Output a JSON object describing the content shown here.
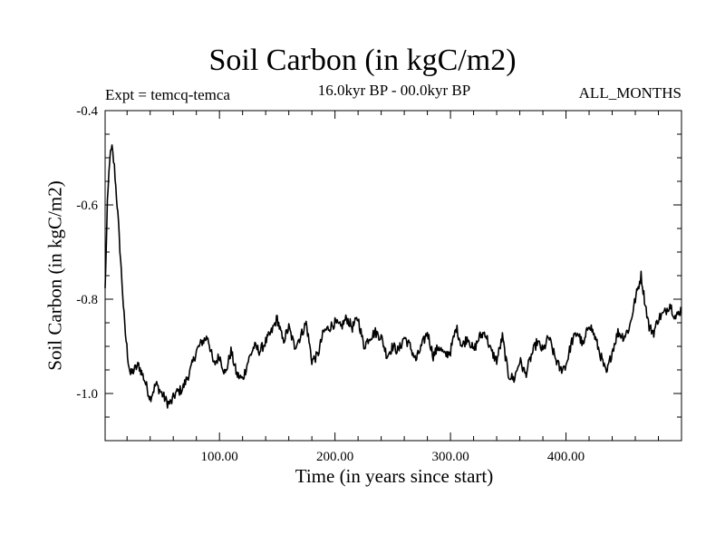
{
  "chart_data": {
    "type": "line",
    "title": "Soil Carbon (in kgC/m2)",
    "subtitle": "16.0kyr BP - 00.0kyr BP",
    "experiment": "Expt = temcq-temca",
    "period": "ALL_MONTHS",
    "xlabel": "Time (in years since start)",
    "ylabel": "Soil Carbon (in kgC/m2)",
    "xlim": [
      1,
      500
    ],
    "ylim": [
      -1.1,
      -0.4
    ],
    "xticks": [
      100,
      200,
      300,
      400
    ],
    "xtick_labels": [
      "100.00",
      "200.00",
      "300.00",
      "400.00"
    ],
    "yticks": [
      -1.0,
      -0.8,
      -0.6,
      -0.4
    ],
    "ytick_labels": [
      "-1.0",
      "-0.8",
      "-0.6",
      "-0.4"
    ],
    "line_color": "#000000",
    "series": [
      {
        "name": "Soil Carbon",
        "x": [
          1,
          3,
          5,
          7,
          9,
          12,
          15,
          18,
          21,
          23,
          26,
          30,
          35,
          40,
          45,
          50,
          55,
          58,
          62,
          68,
          75,
          80,
          85,
          90,
          95,
          100,
          105,
          110,
          115,
          120,
          125,
          130,
          135,
          140,
          145,
          150,
          155,
          160,
          165,
          170,
          175,
          180,
          185,
          190,
          195,
          200,
          205,
          210,
          215,
          220,
          225,
          230,
          235,
          240,
          245,
          250,
          255,
          260,
          265,
          270,
          275,
          280,
          285,
          290,
          295,
          300,
          305,
          310,
          315,
          320,
          325,
          330,
          335,
          340,
          345,
          350,
          355,
          360,
          365,
          370,
          375,
          380,
          385,
          390,
          395,
          400,
          405,
          410,
          415,
          420,
          425,
          430,
          435,
          440,
          445,
          450,
          455,
          460,
          465,
          468,
          472,
          476,
          480,
          485,
          490,
          495,
          500
        ],
        "y": [
          -0.78,
          -0.6,
          -0.5,
          -0.48,
          -0.52,
          -0.62,
          -0.74,
          -0.86,
          -0.93,
          -0.96,
          -0.95,
          -0.94,
          -0.97,
          -1.01,
          -0.98,
          -1.0,
          -1.02,
          -1.02,
          -1.0,
          -0.99,
          -0.95,
          -0.91,
          -0.89,
          -0.88,
          -0.94,
          -0.92,
          -0.96,
          -0.91,
          -0.96,
          -0.97,
          -0.93,
          -0.9,
          -0.91,
          -0.89,
          -0.87,
          -0.84,
          -0.89,
          -0.86,
          -0.9,
          -0.88,
          -0.85,
          -0.93,
          -0.92,
          -0.87,
          -0.86,
          -0.85,
          -0.86,
          -0.84,
          -0.86,
          -0.84,
          -0.9,
          -0.88,
          -0.87,
          -0.88,
          -0.92,
          -0.9,
          -0.91,
          -0.88,
          -0.9,
          -0.93,
          -0.9,
          -0.87,
          -0.92,
          -0.9,
          -0.92,
          -0.91,
          -0.86,
          -0.9,
          -0.88,
          -0.91,
          -0.88,
          -0.87,
          -0.91,
          -0.93,
          -0.88,
          -0.96,
          -0.97,
          -0.93,
          -0.96,
          -0.92,
          -0.89,
          -0.91,
          -0.88,
          -0.92,
          -0.95,
          -0.94,
          -0.89,
          -0.87,
          -0.9,
          -0.85,
          -0.88,
          -0.92,
          -0.96,
          -0.91,
          -0.87,
          -0.88,
          -0.86,
          -0.8,
          -0.75,
          -0.8,
          -0.86,
          -0.87,
          -0.84,
          -0.83,
          -0.81,
          -0.84,
          -0.82
        ]
      }
    ]
  }
}
